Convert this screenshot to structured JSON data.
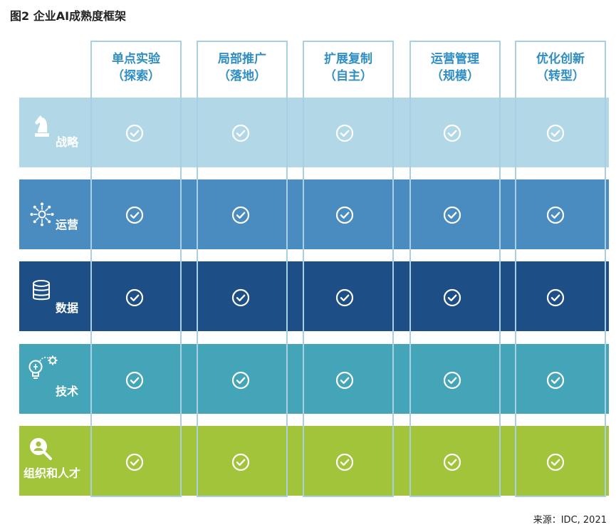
{
  "title": "图2 企业AI成熟度框架",
  "columns": [
    {
      "name": "单点实验",
      "sub": "（探索）"
    },
    {
      "name": "局部推广",
      "sub": "（落地）"
    },
    {
      "name": "扩展复制",
      "sub": "（自主）"
    },
    {
      "name": "运营管理",
      "sub": "（规模）"
    },
    {
      "name": "优化创新",
      "sub": "（转型）"
    }
  ],
  "rows": [
    {
      "label": "战略",
      "icon": "chess-knight-icon",
      "color": "#b2d8e7"
    },
    {
      "label": "运营",
      "icon": "network-hub-icon",
      "color": "#4a8cc0"
    },
    {
      "label": "数据",
      "icon": "database-icon",
      "color": "#1d4e85"
    },
    {
      "label": "技术",
      "icon": "lightbulb-gear-icon",
      "color": "#45a5b8"
    },
    {
      "label": "组织和人才",
      "icon": "person-search-icon",
      "color": "#a2c43b"
    }
  ],
  "cells_checked": true,
  "source": "来源：IDC, 2021"
}
